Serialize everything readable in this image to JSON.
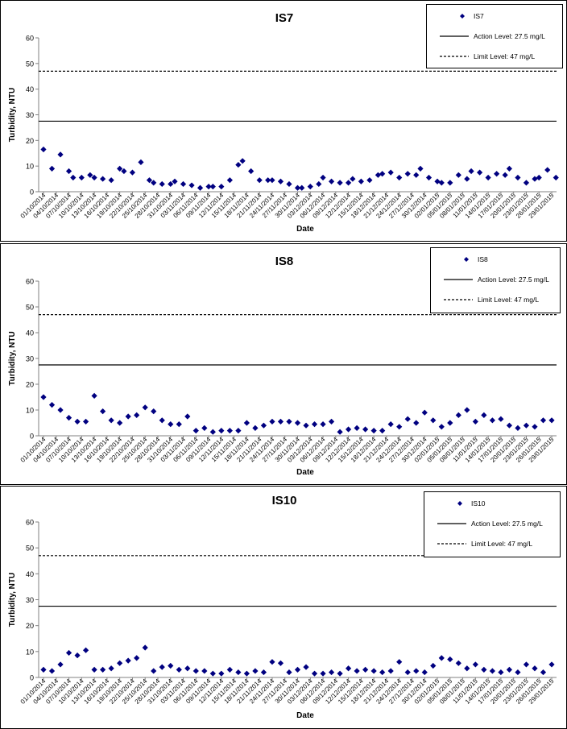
{
  "colors": {
    "marker": "#000080",
    "line": "#000000",
    "frame": "#000000"
  },
  "panels": [
    {
      "title": "IS7",
      "ylabel": "Turbidity, NTU",
      "xlabel": "Date",
      "legend": {
        "series_label": "IS7",
        "action_label": "Action Level: 27.5 mg/L",
        "limit_label": "Limit Level: 47 mg/L"
      }
    },
    {
      "title": "IS8",
      "ylabel": "Turbidity, NTU",
      "xlabel": "Date",
      "legend": {
        "series_label": "IS8",
        "action_label": "Action Level: 27.5 mg/L",
        "limit_label": "Limit Level: 47 mg/L"
      }
    },
    {
      "title": "IS10",
      "ylabel": "Turbidity, NTU",
      "xlabel": "Date",
      "legend": {
        "series_label": "IS10",
        "action_label": "Action Level: 27.5 mg/L",
        "limit_label": "Limit Level: 47 mg/L"
      }
    }
  ],
  "chart_data": [
    {
      "type": "scatter",
      "title": "IS7",
      "xlabel": "Date",
      "ylabel": "Turbidity, NTU",
      "ylim": [
        0,
        60
      ],
      "yticks": [
        0,
        10,
        20,
        30,
        40,
        50,
        60
      ],
      "x_tick_labels": [
        "01/10/2014",
        "04/10/2014",
        "07/10/2014",
        "10/10/2014",
        "13/10/2014",
        "16/10/2014",
        "19/10/2014",
        "22/10/2014",
        "25/10/2014",
        "28/10/2014",
        "31/10/2014",
        "03/11/2014",
        "06/11/2014",
        "09/11/2014",
        "12/11/2014",
        "15/11/2014",
        "18/11/2014",
        "21/11/2014",
        "24/11/2014",
        "27/11/2014",
        "30/11/2014",
        "03/12/2014",
        "06/12/2014",
        "09/12/2014",
        "12/12/2014",
        "15/12/2014",
        "18/12/2014",
        "21/12/2014",
        "24/12/2014",
        "27/12/2014",
        "30/12/2014",
        "02/01/2015",
        "05/01/2015",
        "08/01/2015",
        "11/01/2015",
        "14/01/2015",
        "17/01/2015",
        "20/01/2015",
        "23/01/2015",
        "26/01/2015",
        "29/01/2015"
      ],
      "reference_lines": [
        {
          "name": "Action Level: 27.5 mg/L",
          "y": 27.5,
          "style": "solid"
        },
        {
          "name": "Limit Level: 47 mg/L",
          "y": 47,
          "style": "dashed"
        }
      ],
      "series": [
        {
          "name": "IS7",
          "x": [
            "01/10/2014",
            "03/10/2014",
            "05/10/2014",
            "07/10/2014",
            "08/10/2014",
            "10/10/2014",
            "12/10/2014",
            "13/10/2014",
            "15/10/2014",
            "17/10/2014",
            "19/10/2014",
            "20/10/2014",
            "22/10/2014",
            "24/10/2014",
            "26/10/2014",
            "27/10/2014",
            "29/10/2014",
            "31/10/2014",
            "01/11/2014",
            "03/11/2014",
            "05/11/2014",
            "07/11/2014",
            "09/11/2014",
            "10/11/2014",
            "12/11/2014",
            "14/11/2014",
            "16/11/2014",
            "17/11/2014",
            "19/11/2014",
            "21/11/2014",
            "23/11/2014",
            "24/11/2014",
            "26/11/2014",
            "28/11/2014",
            "30/11/2014",
            "01/12/2014",
            "03/12/2014",
            "05/12/2014",
            "06/12/2014",
            "08/12/2014",
            "10/12/2014",
            "12/12/2014",
            "13/12/2014",
            "15/12/2014",
            "17/12/2014",
            "19/12/2014",
            "20/12/2014",
            "22/12/2014",
            "24/12/2014",
            "26/12/2014",
            "28/12/2014",
            "29/12/2014",
            "31/12/2014",
            "02/01/2015",
            "03/01/2015",
            "05/01/2015",
            "07/01/2015",
            "09/01/2015",
            "10/01/2015",
            "12/01/2015",
            "14/01/2015",
            "16/01/2015",
            "18/01/2015",
            "19/01/2015",
            "21/01/2015",
            "23/01/2015",
            "25/01/2015",
            "26/01/2015",
            "28/01/2015",
            "30/01/2015"
          ],
          "y": [
            16.5,
            9,
            14.5,
            8,
            5.5,
            5.5,
            6.5,
            5.5,
            5,
            4.5,
            9,
            8,
            7.5,
            11.5,
            4.5,
            3.5,
            3,
            3,
            4,
            3,
            2.5,
            1.5,
            2,
            2,
            2,
            4.5,
            10.5,
            12,
            8,
            4.5,
            4.5,
            4.5,
            4,
            3,
            1.5,
            1.5,
            2,
            3,
            5.5,
            4,
            3.5,
            3.5,
            5,
            4,
            4.5,
            6.5,
            7,
            7.5,
            5.5,
            7,
            6.5,
            9,
            5.5,
            4,
            3.5,
            3.5,
            6.5,
            5,
            8,
            7.5,
            5.5,
            7,
            6.5,
            9,
            5.5,
            3.5,
            5,
            5.5,
            8.5,
            5.5
          ]
        }
      ]
    },
    {
      "type": "scatter",
      "title": "IS8",
      "xlabel": "Date",
      "ylabel": "Turbidity, NTU",
      "ylim": [
        0,
        60
      ],
      "yticks": [
        0,
        10,
        20,
        30,
        40,
        50,
        60
      ],
      "x_tick_labels": [
        "01/10/2014",
        "04/10/2014",
        "07/10/2014",
        "10/10/2014",
        "13/10/2014",
        "16/10/2014",
        "19/10/2014",
        "22/10/2014",
        "25/10/2014",
        "28/10/2014",
        "31/10/2014",
        "03/11/2014",
        "06/11/2014",
        "09/11/2014",
        "12/11/2014",
        "15/11/2014",
        "18/11/2014",
        "21/11/2014",
        "24/11/2014",
        "27/11/2014",
        "30/11/2014",
        "03/12/2014",
        "06/12/2014",
        "09/12/2014",
        "12/12/2014",
        "15/12/2014",
        "18/12/2014",
        "21/12/2014",
        "24/12/2014",
        "27/12/2014",
        "30/12/2014",
        "02/01/2015",
        "05/01/2015",
        "08/01/2015",
        "11/01/2015",
        "14/01/2015",
        "17/01/2015",
        "20/01/2015",
        "23/01/2015",
        "26/01/2015",
        "29/01/2015"
      ],
      "reference_lines": [
        {
          "name": "Action Level: 27.5 mg/L",
          "y": 27.5,
          "style": "solid"
        },
        {
          "name": "Limit Level: 47 mg/L",
          "y": 47,
          "style": "dashed"
        }
      ],
      "series": [
        {
          "name": "IS8",
          "x": [
            "01/10/2014",
            "03/10/2014",
            "05/10/2014",
            "07/10/2014",
            "09/10/2014",
            "11/10/2014",
            "13/10/2014",
            "15/10/2014",
            "17/10/2014",
            "19/10/2014",
            "21/10/2014",
            "23/10/2014",
            "25/10/2014",
            "27/10/2014",
            "29/10/2014",
            "31/10/2014",
            "02/11/2014",
            "04/11/2014",
            "06/11/2014",
            "08/11/2014",
            "10/11/2014",
            "12/11/2014",
            "14/11/2014",
            "16/11/2014",
            "18/11/2014",
            "20/11/2014",
            "22/11/2014",
            "24/11/2014",
            "26/11/2014",
            "28/11/2014",
            "30/11/2014",
            "02/12/2014",
            "04/12/2014",
            "06/12/2014",
            "08/12/2014",
            "10/12/2014",
            "12/12/2014",
            "14/12/2014",
            "16/12/2014",
            "18/12/2014",
            "20/12/2014",
            "22/12/2014",
            "24/12/2014",
            "26/12/2014",
            "28/12/2014",
            "30/12/2014",
            "01/01/2015",
            "03/01/2015",
            "05/01/2015",
            "07/01/2015",
            "09/01/2015",
            "11/01/2015",
            "13/01/2015",
            "15/01/2015",
            "17/01/2015",
            "19/01/2015",
            "21/01/2015",
            "23/01/2015",
            "25/01/2015",
            "27/01/2015",
            "29/01/2015"
          ],
          "y": [
            15,
            12,
            10,
            7,
            5.5,
            5.5,
            15.5,
            9.5,
            6,
            5,
            7.5,
            8,
            11,
            9.5,
            6,
            4.5,
            4.5,
            7.5,
            2,
            3,
            1.5,
            2,
            2,
            2,
            5,
            3,
            4,
            5.5,
            5.5,
            5.5,
            5,
            4,
            4.5,
            4.5,
            5.5,
            1.5,
            2.5,
            3,
            2.5,
            2,
            2,
            4.5,
            3.5,
            6.5,
            5,
            9,
            6,
            3.5,
            5,
            8,
            10,
            5.5,
            8,
            6,
            6.5,
            4,
            3,
            4,
            3.5,
            6,
            6
          ]
        }
      ]
    },
    {
      "type": "scatter",
      "title": "IS10",
      "xlabel": "Date",
      "ylabel": "Turbidity, NTU",
      "ylim": [
        0,
        60
      ],
      "yticks": [
        0,
        10,
        20,
        30,
        40,
        50,
        60
      ],
      "x_tick_labels": [
        "01/10/2014",
        "04/10/2014",
        "07/10/2014",
        "10/10/2014",
        "13/10/2014",
        "16/10/2014",
        "19/10/2014",
        "22/10/2014",
        "25/10/2014",
        "28/10/2014",
        "31/10/2014",
        "03/11/2014",
        "06/11/2014",
        "09/11/2014",
        "12/11/2014",
        "15/11/2014",
        "18/11/2014",
        "21/11/2014",
        "24/11/2014",
        "27/11/2014",
        "30/11/2014",
        "03/12/2014",
        "06/12/2014",
        "09/12/2014",
        "12/12/2014",
        "15/12/2014",
        "18/12/2014",
        "21/12/2014",
        "24/12/2014",
        "27/12/2014",
        "30/12/2014",
        "02/01/2015",
        "05/01/2015",
        "08/01/2015",
        "11/01/2015",
        "14/01/2015",
        "17/01/2015",
        "20/01/2015",
        "23/01/2015",
        "26/01/2015",
        "29/01/2015"
      ],
      "reference_lines": [
        {
          "name": "Action Level: 27.5 mg/L",
          "y": 27.5,
          "style": "solid"
        },
        {
          "name": "Limit Level: 47 mg/L",
          "y": 47,
          "style": "dashed"
        }
      ],
      "series": [
        {
          "name": "IS10",
          "x": [
            "01/10/2014",
            "03/10/2014",
            "05/10/2014",
            "07/10/2014",
            "09/10/2014",
            "11/10/2014",
            "13/10/2014",
            "15/10/2014",
            "17/10/2014",
            "19/10/2014",
            "21/10/2014",
            "23/10/2014",
            "25/10/2014",
            "27/10/2014",
            "29/10/2014",
            "31/10/2014",
            "02/11/2014",
            "04/11/2014",
            "06/11/2014",
            "08/11/2014",
            "10/11/2014",
            "12/11/2014",
            "14/11/2014",
            "16/11/2014",
            "18/11/2014",
            "20/11/2014",
            "22/11/2014",
            "24/11/2014",
            "26/11/2014",
            "28/11/2014",
            "30/11/2014",
            "02/12/2014",
            "04/12/2014",
            "06/12/2014",
            "08/12/2014",
            "10/12/2014",
            "12/12/2014",
            "14/12/2014",
            "16/12/2014",
            "18/12/2014",
            "20/12/2014",
            "22/12/2014",
            "24/12/2014",
            "26/12/2014",
            "28/12/2014",
            "30/12/2014",
            "01/01/2015",
            "03/01/2015",
            "05/01/2015",
            "07/01/2015",
            "09/01/2015",
            "11/01/2015",
            "13/01/2015",
            "15/01/2015",
            "17/01/2015",
            "19/01/2015",
            "21/01/2015",
            "23/01/2015",
            "25/01/2015",
            "27/01/2015",
            "29/01/2015"
          ],
          "y": [
            3,
            2.5,
            5,
            9.5,
            8.5,
            10.5,
            3,
            3,
            3.5,
            5.5,
            6.5,
            7.5,
            11.5,
            2.5,
            4,
            4.5,
            3,
            3.5,
            2.5,
            2.5,
            1.5,
            1.5,
            3,
            2,
            1.5,
            2.5,
            2,
            6,
            5.5,
            2,
            3,
            4,
            1.5,
            1.5,
            2,
            1.5,
            3.5,
            2.5,
            3,
            2.5,
            2,
            2.5,
            6,
            2,
            2.5,
            2,
            4.5,
            7.5,
            7,
            5.5,
            3.5,
            5,
            3,
            2.5,
            2,
            3,
            2,
            5,
            3.5,
            2,
            5
          ]
        }
      ]
    }
  ]
}
